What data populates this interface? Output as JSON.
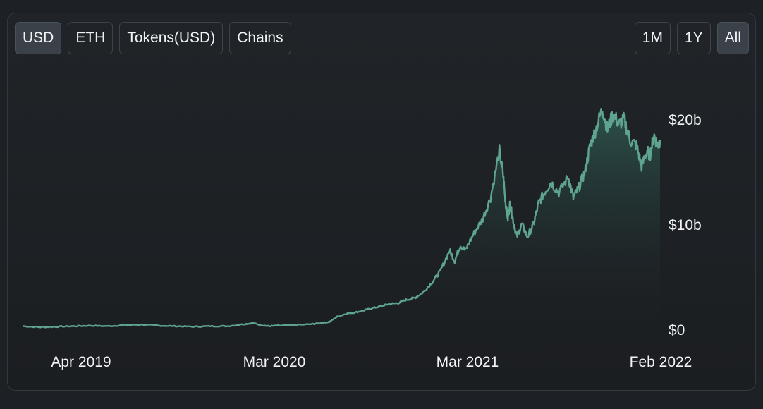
{
  "toolbar": {
    "denominations": [
      {
        "label": "USD",
        "active": true
      },
      {
        "label": "ETH",
        "active": false
      },
      {
        "label": "Tokens(USD)",
        "active": false
      },
      {
        "label": "Chains",
        "active": false
      }
    ],
    "ranges": [
      {
        "label": "1M",
        "active": false
      },
      {
        "label": "1Y",
        "active": false
      },
      {
        "label": "All",
        "active": true
      }
    ]
  },
  "colors": {
    "line": "#5fa48f",
    "area_top": "#2f5a52",
    "background": "#1d2024"
  },
  "chart_data": {
    "type": "area",
    "title": "",
    "xlabel": "",
    "ylabel": "",
    "x_ticks": [
      "Apr 2019",
      "Mar 2020",
      "Mar 2021",
      "Feb 2022"
    ],
    "y_ticks": [
      "$0",
      "$10b",
      "$20b"
    ],
    "y_tick_values": [
      0,
      10,
      20
    ],
    "y_unit": "USD billions",
    "ylim": [
      0,
      21
    ],
    "grid": false,
    "series": [
      {
        "x": [
          "2019-01-01",
          "2019-02-01",
          "2019-03-01",
          "2019-04-01",
          "2019-05-01",
          "2019-06-01",
          "2019-07-01",
          "2019-08-01",
          "2019-09-01",
          "2019-10-01",
          "2019-11-01",
          "2019-12-01",
          "2020-01-01",
          "2020-02-01",
          "2020-02-15",
          "2020-03-01",
          "2020-03-15",
          "2020-04-01",
          "2020-05-01",
          "2020-06-01",
          "2020-06-15",
          "2020-07-01",
          "2020-07-15",
          "2020-08-01",
          "2020-08-15",
          "2020-09-01",
          "2020-09-15",
          "2020-10-01",
          "2020-10-15",
          "2020-11-01",
          "2020-11-15",
          "2020-12-01",
          "2020-12-15",
          "2021-01-01",
          "2021-01-15",
          "2021-02-01",
          "2021-02-10",
          "2021-02-20",
          "2021-03-01",
          "2021-03-15",
          "2021-04-01",
          "2021-04-15",
          "2021-05-01",
          "2021-05-08",
          "2021-05-12",
          "2021-05-16",
          "2021-05-20",
          "2021-05-25",
          "2021-06-01",
          "2021-06-10",
          "2021-06-20",
          "2021-07-01",
          "2021-07-10",
          "2021-07-20",
          "2021-08-01",
          "2021-08-15",
          "2021-09-01",
          "2021-09-10",
          "2021-09-20",
          "2021-10-01",
          "2021-10-10",
          "2021-10-20",
          "2021-11-01",
          "2021-11-10",
          "2021-11-20",
          "2021-12-01",
          "2021-12-10",
          "2021-12-20",
          "2022-01-01",
          "2022-01-10",
          "2022-01-20",
          "2022-01-25",
          "2022-02-01",
          "2022-02-08",
          "2022-02-12"
        ],
        "values": [
          0.3,
          0.2,
          0.25,
          0.3,
          0.35,
          0.3,
          0.4,
          0.45,
          0.35,
          0.3,
          0.25,
          0.3,
          0.3,
          0.5,
          0.6,
          0.4,
          0.3,
          0.35,
          0.4,
          0.5,
          0.6,
          0.7,
          1.2,
          1.5,
          1.6,
          1.8,
          2.0,
          2.2,
          2.4,
          2.5,
          2.8,
          3.0,
          3.5,
          4.5,
          5.5,
          7.5,
          6.5,
          8.0,
          7.5,
          9.0,
          10.5,
          12.5,
          17.0,
          14.5,
          12.0,
          10.5,
          12.0,
          10.5,
          8.8,
          10.0,
          8.8,
          10.0,
          12.0,
          13.0,
          14.0,
          13.0,
          14.5,
          12.5,
          13.5,
          15.0,
          17.5,
          19.0,
          21.0,
          19.0,
          20.5,
          19.5,
          20.0,
          18.0,
          17.5,
          15.5,
          17.0,
          16.5,
          18.5,
          17.5,
          18.0
        ]
      }
    ]
  }
}
